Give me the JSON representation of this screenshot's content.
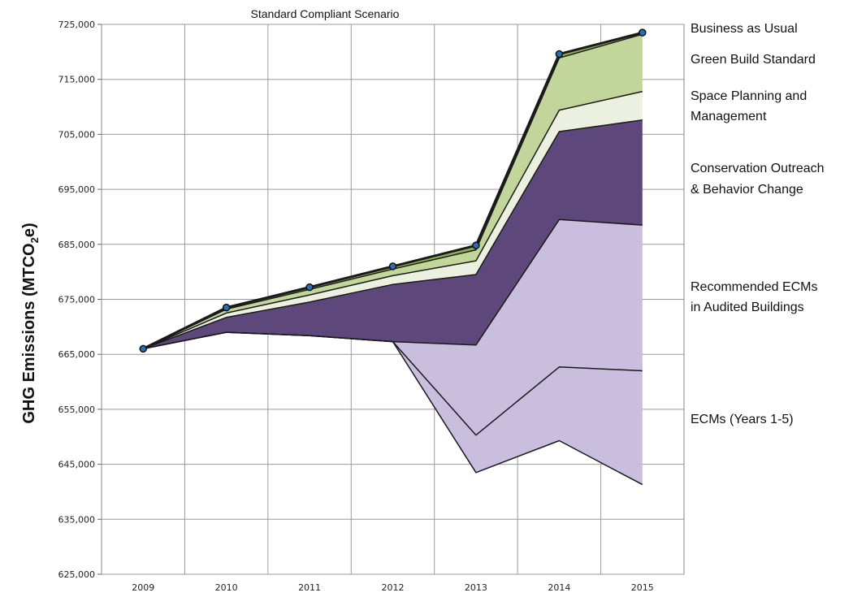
{
  "chart_data": {
    "type": "area",
    "title": "Standard Compliant Scenario",
    "ylabel": "GHG Emissions (MTCO",
    "ylabel_sub": "2",
    "ylabel_end": "e)",
    "x": [
      "2009",
      "2010",
      "2011",
      "2012",
      "2013",
      "2014",
      "2015"
    ],
    "ylim": [
      625000,
      725000
    ],
    "yticks": [
      625000,
      635000,
      645000,
      655000,
      665000,
      675000,
      685000,
      695000,
      705000,
      715000,
      725000
    ],
    "ytick_labels": [
      "625,000",
      "635,000",
      "645,000",
      "655,000",
      "665,000",
      "675,000",
      "685,000",
      "695,000",
      "705,000",
      "715,000",
      "725,000"
    ],
    "grid": true,
    "legend_position": "right",
    "series": [
      {
        "name": "Business as Usual",
        "values": [
          666000,
          673500,
          677200,
          681000,
          684800,
          719600,
          723500
        ],
        "color": "#8db050"
      },
      {
        "name": "Green Build Standard",
        "values": [
          666000,
          673200,
          676800,
          680500,
          684000,
          718900,
          723200
        ],
        "color": "#8db050"
      },
      {
        "name": "Space Planning and Management",
        "values": [
          666000,
          672500,
          675800,
          679300,
          682000,
          709400,
          712800
        ],
        "color": "#c2d59b"
      },
      {
        "name": "Conservation Outreach & Behavior Change",
        "values": [
          666000,
          671700,
          674500,
          677700,
          679500,
          705500,
          707600
        ],
        "color": "#ecf0e1"
      },
      {
        "name": "Recommended ECMs in Audited Buildings",
        "values": [
          666000,
          669000,
          668400,
          667300,
          666700,
          689500,
          688500
        ],
        "color": "#5d477b"
      },
      {
        "name": "ECMs (Years 1-5)",
        "values": [
          666000,
          669000,
          668400,
          667300,
          650300,
          662700,
          662000
        ],
        "color": "#c9bedd"
      },
      {
        "name": "",
        "values": [
          666000,
          669000,
          668400,
          667300,
          643500,
          649300,
          641300
        ],
        "color": "#ffffff"
      }
    ],
    "legend_labels": [
      {
        "text": "Business as Usual"
      },
      {
        "text": "Green Build Standard"
      },
      {
        "text": "Space Planning and"
      },
      {
        "text": "Management"
      },
      {
        "text": "Conservation Outreach"
      },
      {
        "text": "& Behavior Change"
      },
      {
        "text": "Recommended ECMs"
      },
      {
        "text": "in Audited Buildings"
      },
      {
        "text": "ECMs (Years 1-5)"
      }
    ]
  }
}
